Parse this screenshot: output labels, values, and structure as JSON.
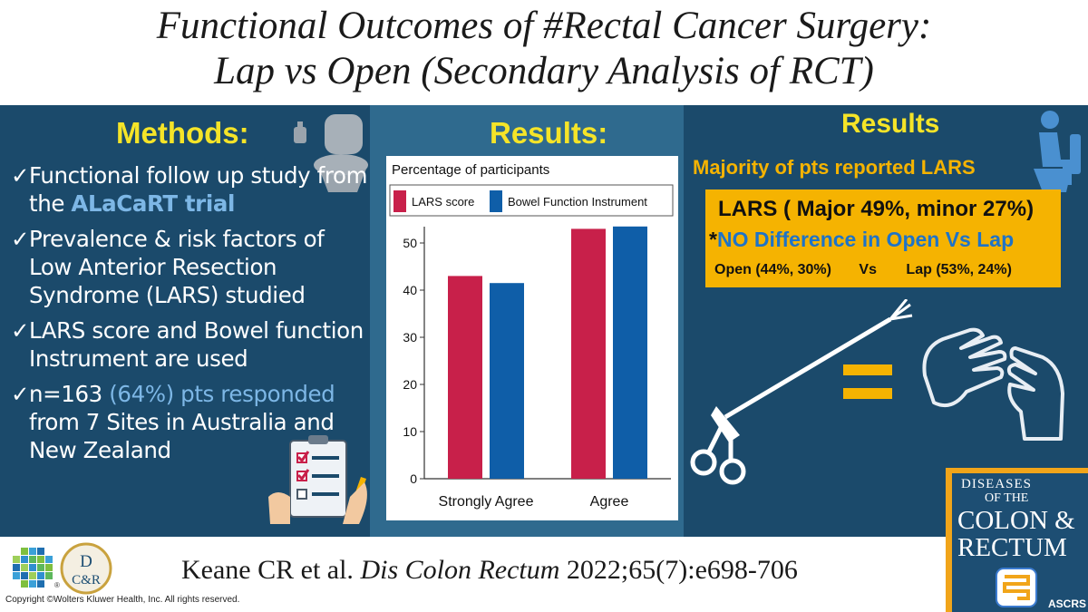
{
  "title": {
    "line1": "Functional Outcomes of #Rectal Cancer Surgery:",
    "line2": "Lap vs Open (Secondary Analysis of RCT)"
  },
  "methods": {
    "heading": "Methods:",
    "check": "✓",
    "items": [
      {
        "a": "Functional follow up study from the ",
        "b": "ALaCaRT trial",
        "c": ""
      },
      {
        "a": "Prevalence & risk factors of Low Anterior Resection Syndrome (LARS) studied",
        "b": "",
        "c": ""
      },
      {
        "a": "LARS score and Bowel function Instrument are used",
        "b": "",
        "c": ""
      },
      {
        "a": "n=163 ",
        "b": "(64%) pts responded",
        "c": " from 7 Sites in Australia and New Zealand"
      }
    ]
  },
  "results_chart_heading": "Results:",
  "chart_data": {
    "type": "bar",
    "title": "Percentage of participants",
    "categories": [
      "Strongly Agree",
      "Agree"
    ],
    "series": [
      {
        "name": "LARS score",
        "color": "#c8204a",
        "values": [
          43,
          53
        ]
      },
      {
        "name": "Bowel Function Instrument",
        "color": "#0f5ea8",
        "values": [
          41.5,
          53.5
        ]
      }
    ],
    "ylim": [
      0,
      55
    ],
    "yticks": [
      "0",
      "10",
      "20",
      "30",
      "40",
      "50"
    ],
    "xlabel": "",
    "ylabel": "",
    "legend": "top"
  },
  "results_right": {
    "heading": "Results",
    "majority": "Majority of pts reported LARS",
    "lars": "LARS ( Major 49%, minor 27%)",
    "star": "*",
    "nodiff": "NO Difference in Open Vs Lap",
    "open": "Open (44%, 30%)",
    "vs": "Vs",
    "lap": "Lap (53%, 24%)"
  },
  "equals": "=",
  "citation": {
    "authors": "Keane CR et al.",
    "journal": "Dis Colon Rectum",
    "ref": "2022;65(7):e698-706"
  },
  "copyright": "Copyright ©Wolters Kluwer Health, Inc. All rights reserved.",
  "logos": {
    "dcr_top": "D",
    "dcr_bottom": "C&R",
    "wk_mark": "®"
  },
  "journal_cover": {
    "line1": "DISEASES",
    "line2": "OF THE",
    "line3": "COLON &",
    "line4": "RECTUM",
    "society": "ASCRS"
  },
  "colors": {
    "band": "#1b4a6b",
    "panel": "#2f6a8e",
    "heading": "#f5e428",
    "accent": "#f5b301",
    "lars_bar": "#c8204a",
    "bfi_bar": "#0f5ea8"
  },
  "icons": [
    "toilet-icon",
    "person-on-toilet-icon",
    "checklist-icon",
    "laparoscopic-instrument-icon",
    "hands-icon",
    "equals-icon"
  ]
}
